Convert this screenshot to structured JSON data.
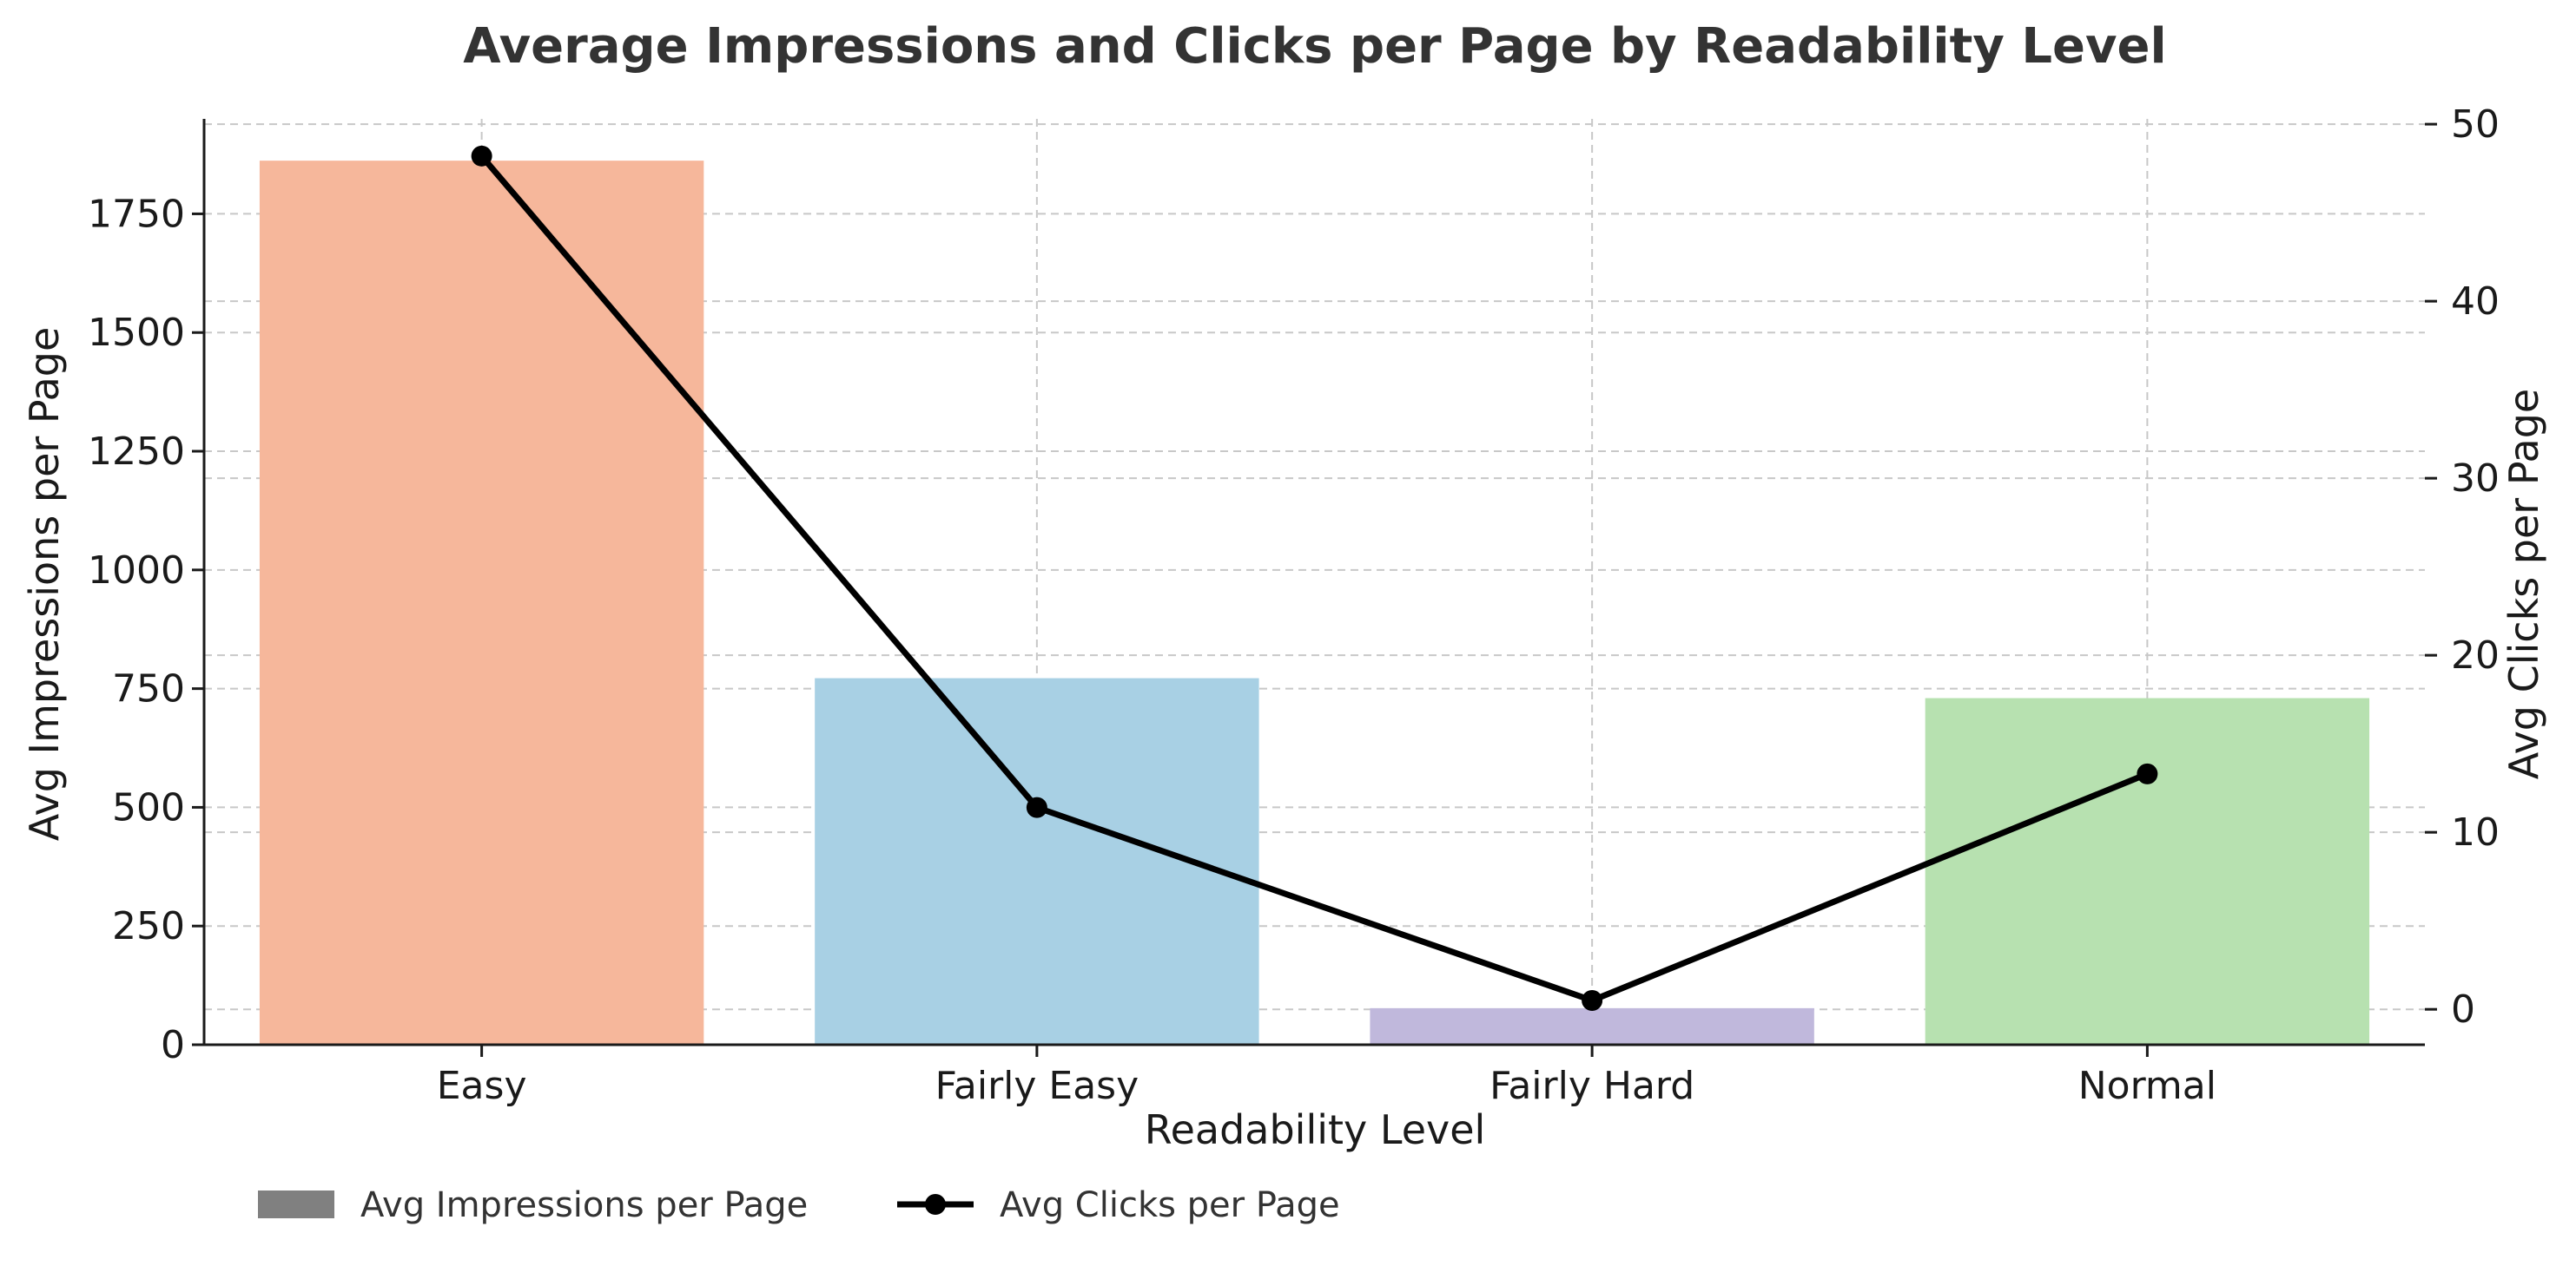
{
  "chart_data": {
    "type": "bar",
    "title": "Average Impressions and Clicks per Page by Readability Level",
    "xlabel": "Readability Level",
    "ylabel": "Avg Impressions per Page",
    "y2label": "Avg Clicks per Page",
    "categories": [
      "Easy",
      "Fairly Easy",
      "Fairly Hard",
      "Normal"
    ],
    "bar_colors": [
      "#f6b79b",
      "#a8d0e4",
      "#c0b8dc",
      "#b7e1b0"
    ],
    "line_color": "#000000",
    "ylim": [
      0,
      1950
    ],
    "y2lim": [
      -2,
      50.3
    ],
    "yticks": [
      0,
      250,
      500,
      750,
      1000,
      1250,
      1500,
      1750
    ],
    "y2ticks": [
      0,
      10,
      20,
      30,
      40,
      50
    ],
    "grid": true,
    "legend_position": "bottom-left",
    "legend_swatch_color": "#808080",
    "series": [
      {
        "name": "Avg Impressions per Page",
        "type": "bar",
        "axis": "left",
        "values": [
          1862,
          772,
          77,
          730
        ]
      },
      {
        "name": "Avg Clicks per Page",
        "type": "line",
        "axis": "right",
        "values": [
          48.2,
          11.4,
          0.5,
          13.3
        ]
      }
    ]
  }
}
